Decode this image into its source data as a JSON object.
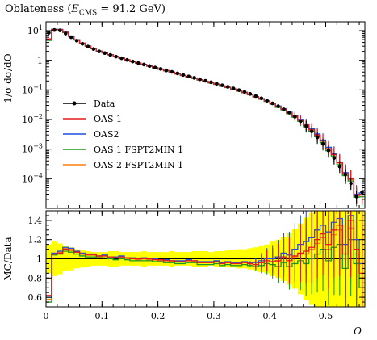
{
  "chart_data": {
    "type": "line",
    "title_prefix": "Oblateness (",
    "title_var": "E",
    "title_sub": "CMS",
    "title_suffix": " = 91.2 GeV)",
    "ylabel_main": "1/σ dσ/dO",
    "ylabel_ratio": "MC/Data",
    "xlabel": "O",
    "x_ticks": [
      0,
      0.1,
      0.2,
      0.3,
      0.4,
      0.5
    ],
    "x_tick_labels": [
      "0",
      "0.1",
      "0.2",
      "0.3",
      "0.4",
      "0.5"
    ],
    "x_range": [
      0,
      0.57
    ],
    "y_range_main_log10": [
      -5,
      1.3
    ],
    "y_ticks_main": [
      {
        "exp": 1,
        "label": "10",
        "sup": "1"
      },
      {
        "exp": 0,
        "label": "1",
        "sup": ""
      },
      {
        "exp": -1,
        "label": "10",
        "sup": "−1"
      },
      {
        "exp": -2,
        "label": "10",
        "sup": "−2"
      },
      {
        "exp": -3,
        "label": "10",
        "sup": "−3"
      },
      {
        "exp": -4,
        "label": "10",
        "sup": "−4"
      }
    ],
    "y_range_ratio": [
      0.5,
      1.5
    ],
    "y_ticks_ratio": [
      0.6,
      0.8,
      1.0,
      1.2,
      1.4
    ],
    "y_tick_labels_ratio": [
      "0.6",
      "0.8",
      "1",
      "1.2",
      "1.4"
    ],
    "colors": {
      "data": "#000000",
      "oas1": "#e31a1c",
      "oas2": "#1f4fe0",
      "oas1_fspt": "#1a9a1a",
      "oas2_fspt": "#ff7f0e",
      "band": "#ffff00"
    },
    "legend": [
      {
        "key": "data",
        "label": "Data"
      },
      {
        "key": "oas1",
        "label": "OAS 1"
      },
      {
        "key": "oas2",
        "label": "OAS2"
      },
      {
        "key": "oas1_fspt",
        "label": "OAS 1 FSPT2MIN 1"
      },
      {
        "key": "oas2_fspt",
        "label": "OAS 2 FSPT2MIN 1"
      }
    ],
    "data": {
      "x": [
        0.005,
        0.015,
        0.025,
        0.035,
        0.045,
        0.055,
        0.065,
        0.075,
        0.085,
        0.095,
        0.105,
        0.115,
        0.125,
        0.135,
        0.145,
        0.155,
        0.165,
        0.175,
        0.185,
        0.195,
        0.205,
        0.215,
        0.225,
        0.235,
        0.245,
        0.255,
        0.265,
        0.275,
        0.285,
        0.295,
        0.305,
        0.315,
        0.325,
        0.335,
        0.345,
        0.355,
        0.365,
        0.375,
        0.385,
        0.395,
        0.405,
        0.415,
        0.425,
        0.435,
        0.445,
        0.455,
        0.465,
        0.475,
        0.485,
        0.495,
        0.505,
        0.515,
        0.525,
        0.535,
        0.545,
        0.555,
        0.565
      ],
      "y": [
        8.5,
        10.5,
        10.2,
        8.0,
        6.0,
        4.6,
        3.6,
        2.9,
        2.4,
        2.0,
        1.75,
        1.52,
        1.33,
        1.17,
        1.03,
        0.91,
        0.81,
        0.72,
        0.64,
        0.57,
        0.51,
        0.455,
        0.405,
        0.36,
        0.32,
        0.285,
        0.255,
        0.228,
        0.203,
        0.181,
        0.161,
        0.143,
        0.127,
        0.112,
        0.098,
        0.085,
        0.073,
        0.062,
        0.052,
        0.043,
        0.035,
        0.028,
        0.022,
        0.017,
        0.0125,
        0.0088,
        0.006,
        0.004,
        0.0025,
        0.0015,
        0.0009,
        0.0005,
        0.00026,
        0.00014,
        7e-05,
        2.5e-05,
        3.5e-05
      ]
    },
    "ratio_band": [
      0.85,
      0.82,
      0.84,
      0.87,
      0.88,
      0.9,
      0.91,
      0.92,
      0.93,
      0.93,
      0.93,
      0.92,
      0.92,
      0.93,
      0.93,
      0.93,
      0.93,
      0.92,
      0.93,
      0.93,
      0.93,
      0.93,
      0.92,
      0.93,
      0.93,
      0.93,
      0.92,
      0.92,
      0.92,
      0.93,
      0.92,
      0.92,
      0.91,
      0.91,
      0.9,
      0.9,
      0.89,
      0.88,
      0.86,
      0.85,
      0.82,
      0.8,
      0.77,
      0.73,
      0.69,
      0.63,
      0.57,
      0.52,
      0.45,
      0.4,
      0.35,
      0.3,
      0.3,
      0.3,
      0.3,
      0.3,
      0.3
    ],
    "ratios": {
      "oas1": [
        0.62,
        1.05,
        1.06,
        1.1,
        1.09,
        1.07,
        1.05,
        1.04,
        1.04,
        1.03,
        1.03,
        1.02,
        1.01,
        1.02,
        1.01,
        1.0,
        1.0,
        1.0,
        1.0,
        0.99,
        0.99,
        0.98,
        0.98,
        0.97,
        0.97,
        0.98,
        0.98,
        0.96,
        0.96,
        0.96,
        0.97,
        0.95,
        0.96,
        0.95,
        0.95,
        0.96,
        0.95,
        0.94,
        0.96,
        0.98,
        0.97,
        0.98,
        1.02,
        0.98,
        1.03,
        1.06,
        1.08,
        1.12,
        1.2,
        1.26,
        1.15,
        1.3,
        1.35,
        1.05,
        1.4,
        1.1,
        0.85
      ],
      "oas2": [
        0.6,
        1.06,
        1.08,
        1.12,
        1.11,
        1.08,
        1.06,
        1.05,
        1.05,
        1.03,
        1.04,
        1.02,
        1.02,
        1.03,
        1.01,
        1.01,
        1.0,
        1.01,
        1.0,
        1.0,
        0.99,
        0.99,
        0.98,
        0.98,
        0.98,
        0.99,
        0.98,
        0.97,
        0.97,
        0.97,
        0.98,
        0.96,
        0.97,
        0.96,
        0.96,
        0.97,
        0.96,
        0.96,
        0.98,
        1.0,
        1.0,
        1.02,
        1.06,
        1.04,
        1.1,
        1.15,
        1.18,
        1.22,
        1.3,
        1.35,
        1.28,
        1.38,
        1.42,
        1.15,
        1.45,
        1.2,
        0.95
      ],
      "oas1_fspt": [
        0.55,
        1.04,
        1.05,
        1.08,
        1.07,
        1.05,
        1.03,
        1.02,
        1.02,
        1.01,
        1.01,
        1.0,
        0.99,
        1.0,
        0.99,
        0.98,
        0.98,
        0.98,
        0.98,
        0.97,
        0.97,
        0.96,
        0.96,
        0.95,
        0.95,
        0.96,
        0.96,
        0.94,
        0.94,
        0.94,
        0.95,
        0.93,
        0.94,
        0.93,
        0.93,
        0.94,
        0.93,
        0.92,
        0.93,
        0.95,
        0.94,
        0.92,
        0.96,
        0.92,
        0.95,
        0.98,
        0.95,
        1.0,
        1.05,
        1.1,
        0.98,
        1.12,
        1.15,
        0.9,
        1.2,
        0.95,
        0.7
      ],
      "oas2_fspt": [
        0.58,
        1.05,
        1.07,
        1.11,
        1.1,
        1.07,
        1.05,
        1.04,
        1.04,
        1.02,
        1.03,
        1.01,
        1.01,
        1.02,
        1.0,
        1.0,
        0.99,
        1.0,
        0.99,
        0.99,
        0.98,
        0.98,
        0.97,
        0.97,
        0.97,
        0.98,
        0.97,
        0.96,
        0.96,
        0.96,
        0.97,
        0.95,
        0.96,
        0.95,
        0.95,
        0.96,
        0.95,
        0.94,
        0.96,
        0.98,
        0.97,
        0.97,
        1.01,
        0.98,
        1.02,
        1.05,
        1.05,
        1.1,
        1.16,
        1.22,
        1.1,
        1.25,
        1.3,
        1.0,
        1.32,
        1.05,
        0.8
      ]
    }
  }
}
